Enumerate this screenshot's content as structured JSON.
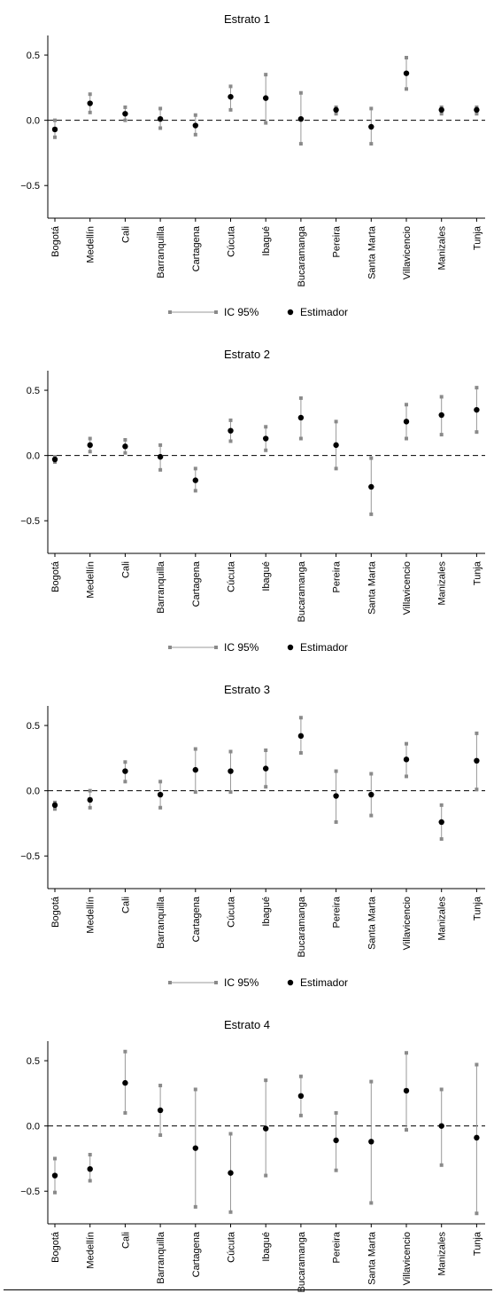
{
  "legend": {
    "ci_label": "IC 95%",
    "estimate_label": "Estimador"
  },
  "chart_data": [
    {
      "type": "scatter",
      "title": "Estrato 1",
      "categories": [
        "Bogotá",
        "Medellín",
        "Cali",
        "Barranquilla",
        "Cartagena",
        "Cúcuta",
        "Ibagué",
        "Bucaramanga",
        "Pereira",
        "Santa Marta",
        "Villavicencio",
        "Manizales",
        "Tunja"
      ],
      "estimate": [
        -0.07,
        0.13,
        0.05,
        0.01,
        -0.04,
        0.18,
        0.17,
        0.01,
        0.08,
        -0.05,
        0.36,
        0.08,
        0.08
      ],
      "ci_low": [
        -0.13,
        0.06,
        0.0,
        -0.06,
        -0.11,
        0.08,
        -0.02,
        -0.18,
        0.05,
        -0.18,
        0.24,
        0.05,
        0.05
      ],
      "ci_high": [
        0.0,
        0.2,
        0.1,
        0.09,
        0.04,
        0.26,
        0.35,
        0.21,
        0.1,
        0.09,
        0.48,
        0.1,
        0.1
      ],
      "yticks": [
        0.5,
        0.0,
        -0.5
      ],
      "ytick_labels": [
        "0.5",
        "0.0",
        "−0.5"
      ],
      "ylim": [
        -0.75,
        0.65
      ],
      "reference_line": 0,
      "legend_position": "bottom-center"
    },
    {
      "type": "scatter",
      "title": "Estrato 2",
      "categories": [
        "Bogotá",
        "Medellín",
        "Cali",
        "Barranquilla",
        "Cartagena",
        "Cúcuta",
        "Ibagué",
        "Bucaramanga",
        "Pereira",
        "Santa Marta",
        "Villavicencio",
        "Manizales",
        "Tunja"
      ],
      "estimate": [
        -0.03,
        0.08,
        0.07,
        -0.01,
        -0.19,
        0.19,
        0.13,
        0.29,
        0.08,
        -0.24,
        0.26,
        0.31,
        0.35
      ],
      "ci_low": [
        -0.05,
        0.03,
        0.02,
        -0.11,
        -0.27,
        0.11,
        0.04,
        0.13,
        -0.1,
        -0.45,
        0.13,
        0.16,
        0.18
      ],
      "ci_high": [
        -0.01,
        0.13,
        0.12,
        0.08,
        -0.1,
        0.27,
        0.22,
        0.44,
        0.26,
        -0.02,
        0.39,
        0.45,
        0.52
      ],
      "yticks": [
        0.5,
        0.0,
        -0.5
      ],
      "ytick_labels": [
        "0.5",
        "0.0",
        "−0.5"
      ],
      "ylim": [
        -0.75,
        0.65
      ],
      "reference_line": 0,
      "legend_position": "bottom-center"
    },
    {
      "type": "scatter",
      "title": "Estrato 3",
      "categories": [
        "Bogotá",
        "Medellín",
        "Cali",
        "Barranquilla",
        "Cartagena",
        "Cúcuta",
        "Ibagué",
        "Bucaramanga",
        "Pereira",
        "Santa Marta",
        "Villavicencio",
        "Manizales",
        "Tunja"
      ],
      "estimate": [
        -0.11,
        -0.07,
        0.15,
        -0.03,
        0.16,
        0.15,
        0.17,
        0.42,
        -0.04,
        -0.03,
        0.24,
        -0.24,
        0.23
      ],
      "ci_low": [
        -0.14,
        -0.13,
        0.07,
        -0.13,
        -0.01,
        -0.01,
        0.03,
        0.29,
        -0.24,
        -0.19,
        0.11,
        -0.37,
        0.01
      ],
      "ci_high": [
        -0.09,
        0.0,
        0.22,
        0.07,
        0.32,
        0.3,
        0.31,
        0.56,
        0.15,
        0.13,
        0.36,
        -0.11,
        0.44
      ],
      "yticks": [
        0.5,
        0.0,
        -0.5
      ],
      "ytick_labels": [
        "0.5",
        "0.0",
        "−0.5"
      ],
      "ylim": [
        -0.75,
        0.65
      ],
      "reference_line": 0,
      "legend_position": "bottom-center"
    },
    {
      "type": "scatter",
      "title": "Estrato 4",
      "categories": [
        "Bogotá",
        "Medellín",
        "Cali",
        "Barranquilla",
        "Cartagena",
        "Cúcuta",
        "Ibagué",
        "Bucaramanga",
        "Pereira",
        "Santa Marta",
        "Villavicencio",
        "Manizales",
        "Tunja"
      ],
      "estimate": [
        -0.38,
        -0.33,
        0.33,
        0.12,
        -0.17,
        -0.36,
        -0.02,
        0.23,
        -0.11,
        -0.12,
        0.27,
        0.0,
        -0.09
      ],
      "ci_low": [
        -0.51,
        -0.42,
        0.1,
        -0.07,
        -0.62,
        -0.66,
        -0.38,
        0.08,
        -0.34,
        -0.59,
        -0.03,
        -0.3,
        -0.67
      ],
      "ci_high": [
        -0.25,
        -0.22,
        0.57,
        0.31,
        0.28,
        -0.06,
        0.35,
        0.38,
        0.1,
        0.34,
        0.56,
        0.28,
        0.47
      ],
      "yticks": [
        0.5,
        0.0,
        -0.5
      ],
      "ytick_labels": [
        "0.5",
        "0.0",
        "−0.5"
      ],
      "ylim": [
        -0.75,
        0.65
      ],
      "reference_line": 0,
      "legend_position": "bottom-center"
    }
  ]
}
